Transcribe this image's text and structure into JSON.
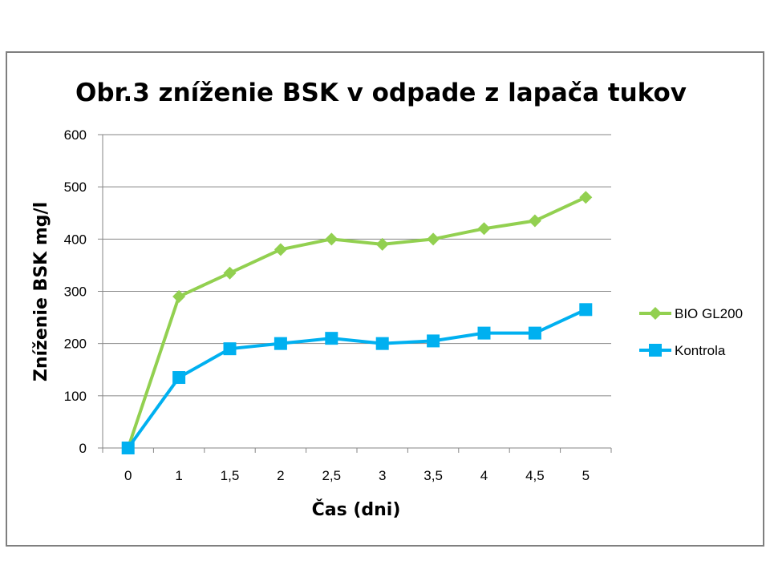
{
  "chart_data": {
    "type": "line",
    "title": "Obr.3 zníženie BSK v odpade z lapača tukov",
    "xlabel": "Čas (dni)",
    "ylabel": "Zníženie BSK mg/l",
    "categories": [
      "0",
      "1",
      "1,5",
      "2",
      "2,5",
      "3",
      "3,5",
      "4",
      "4,5",
      "5"
    ],
    "ylim": [
      0,
      600
    ],
    "yticks": [
      "0",
      "100",
      "200",
      "300",
      "400",
      "500",
      "600"
    ],
    "grid": true,
    "legend_position": "right",
    "series": [
      {
        "name": "BIO GL200",
        "color": "#92d050",
        "marker": "diamond",
        "values": [
          0,
          290,
          335,
          380,
          400,
          390,
          400,
          420,
          435,
          480
        ]
      },
      {
        "name": "Kontrola",
        "color": "#00b0f0",
        "marker": "square",
        "values": [
          0,
          135,
          190,
          200,
          210,
          200,
          205,
          220,
          220,
          265
        ]
      }
    ]
  }
}
